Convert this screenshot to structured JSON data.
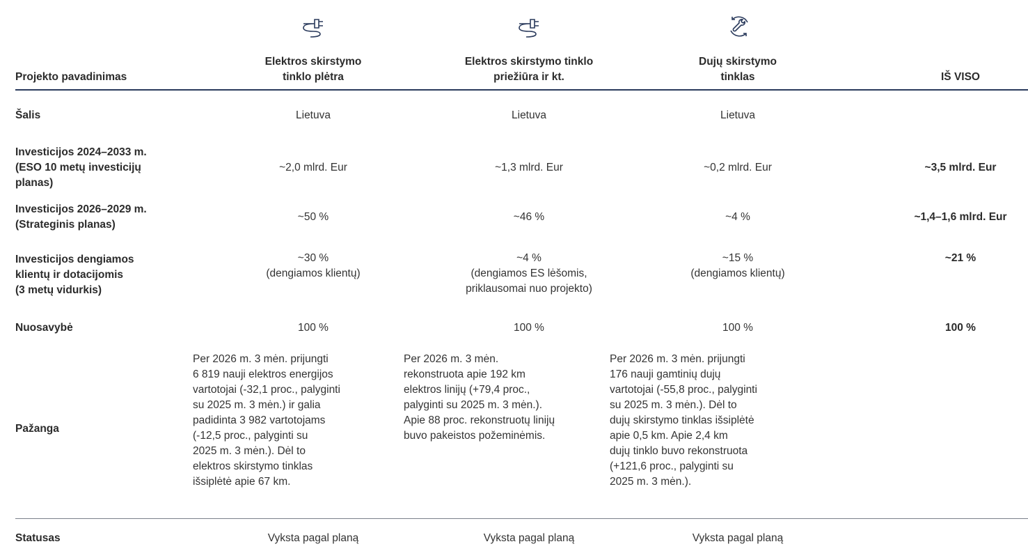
{
  "header": {
    "columns": [
      [
        "Projekto pavadinimas"
      ],
      [
        "Elektros skirstymo",
        "tinklo plėtra"
      ],
      [
        "Elektros skirstymo tinklo",
        "priežiūra ir kt."
      ],
      [
        "Dujų skirstymo",
        "tinklas"
      ],
      [
        "IŠ VISO"
      ]
    ]
  },
  "rows": [
    {
      "label": [
        "Šalis"
      ],
      "cells": [
        [
          "Lietuva"
        ],
        [
          "Lietuva"
        ],
        [
          "Lietuva"
        ],
        []
      ]
    },
    {
      "label": [
        "Investicijos 2024–2033 m.",
        "(ESO 10 metų investicijų",
        "planas)"
      ],
      "cells": [
        [
          "~2,0 mlrd. Eur"
        ],
        [
          "~1,3 mlrd. Eur"
        ],
        [
          "~0,2 mlrd. Eur"
        ],
        [
          "~3,5 mlrd. Eur"
        ]
      ]
    },
    {
      "label": [
        "Investicijos 2026–2029 m.",
        "(Strateginis planas)"
      ],
      "cells": [
        [
          "~50 %"
        ],
        [
          "~46 %"
        ],
        [
          "~4 %"
        ],
        [
          "~1,4–1,6 mlrd. Eur"
        ]
      ]
    },
    {
      "label": [
        "Investicijos dengiamos",
        "klientų ir dotacijomis",
        "(3 metų vidurkis)"
      ],
      "cells": [
        [
          "~30 %",
          "(dengiamos klientų)"
        ],
        [
          "~4 %",
          "(dengiamos ES lėšomis,",
          "priklausomai nuo projekto)"
        ],
        [
          "~15 %",
          "(dengiamos klientų)"
        ],
        [
          "~21 %"
        ]
      ]
    },
    {
      "label": [
        "Nuosavybė"
      ],
      "cells": [
        [
          "100 %"
        ],
        [
          "100 %"
        ],
        [
          "100 %"
        ],
        [
          "100 %"
        ]
      ]
    },
    {
      "label": [
        "Pažanga"
      ],
      "cells": [
        [
          "Per 2026 m. 3 mėn. prijungti",
          "6 819 nauji elektros energijos",
          "vartotojai (-32,1 proc., palyginti",
          "su 2025 m. 3 mėn.) ir galia",
          "padidinta 3 982 vartotojams",
          "(-12,5 proc., palyginti su",
          "2025 m. 3 mėn.). Dėl to",
          "elektros skirstymo tinklas",
          "išsiplėtė apie 67 km."
        ],
        [
          "Per 2026 m. 3 mėn.",
          "rekonstruota apie 192 km",
          "elektros linijų (+79,4 proc.,",
          "palyginti su 2025 m. 3 mėn.).",
          "Apie 88 proc. rekonstruotų linijų",
          "buvo pakeistos požeminėmis."
        ],
        [
          "Per 2026 m. 3 mėn. prijungti",
          "176 nauji gamtinių dujų",
          "vartotojai (-55,8 proc., palyginti",
          "su 2025 m. 3 mėn.). Dėl to",
          "dujų skirstymo tinklas išsiplėtė",
          "apie 0,5 km. Apie 2,4 km",
          "dujų tinklo buvo rekonstruota",
          "(+121,6 proc., palyginti su",
          "2025 m. 3 mėn.)."
        ],
        []
      ]
    },
    {
      "label": [
        "Statusas"
      ],
      "cells": [
        [
          "Vyksta pagal planą"
        ],
        [
          "Vyksta pagal planą"
        ],
        [
          "Vyksta pagal planą"
        ],
        []
      ]
    }
  ]
}
